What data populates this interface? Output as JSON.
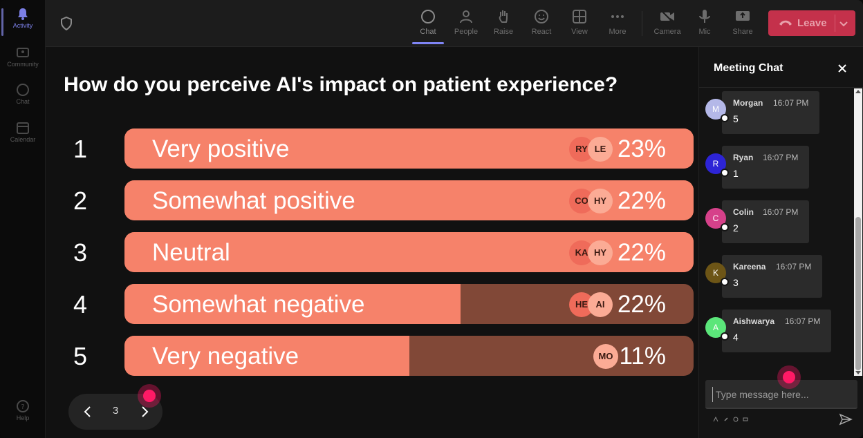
{
  "rail": {
    "items": [
      {
        "label": "Activity",
        "icon": "bell-icon",
        "active": true
      },
      {
        "label": "Community",
        "icon": "community-icon",
        "active": false
      },
      {
        "label": "Chat",
        "icon": "chat-icon",
        "active": false
      },
      {
        "label": "Calendar",
        "icon": "calendar-icon",
        "active": false
      }
    ],
    "help": "Help"
  },
  "toolbar": {
    "chat": "Chat",
    "people": "People",
    "raise": "Raise",
    "react": "React",
    "view": "View",
    "more": "More",
    "camera": "Camera",
    "mic": "Mic",
    "share": "Share",
    "leave": "Leave"
  },
  "poll": {
    "question": "How do you perceive AI's impact on patient experience?",
    "options": [
      {
        "num": "1",
        "label": "Very positive",
        "percent": "23%",
        "fill": 1.0,
        "avatars": [
          "RY",
          "LE"
        ]
      },
      {
        "num": "2",
        "label": "Somewhat positive",
        "percent": "22%",
        "fill": 1.0,
        "avatars": [
          "CO",
          "HY"
        ]
      },
      {
        "num": "3",
        "label": "Neutral",
        "percent": "22%",
        "fill": 1.0,
        "avatars": [
          "KA",
          "HY"
        ]
      },
      {
        "num": "4",
        "label": "Somewhat negative",
        "percent": "22%",
        "fill": 0.59,
        "avatars": [
          "HE",
          "AI"
        ]
      },
      {
        "num": "5",
        "label": "Very negative",
        "percent": "11%",
        "fill": 0.5,
        "avatars": [
          "MO"
        ]
      }
    ],
    "page": "3"
  },
  "chat": {
    "title": "Meeting Chat",
    "messages": [
      {
        "initial": "M",
        "name": "Morgan",
        "time": "16:07 PM",
        "text": "5",
        "color": "#b4b8e8"
      },
      {
        "initial": "R",
        "name": "Ryan",
        "time": "16:07 PM",
        "text": "1",
        "color": "#2d24d6"
      },
      {
        "initial": "C",
        "name": "Colin",
        "time": "16:07 PM",
        "text": "2",
        "color": "#d6418a"
      },
      {
        "initial": "K",
        "name": "Kareena",
        "time": "16:07 PM",
        "text": "3",
        "color": "#6d5516"
      },
      {
        "initial": "A",
        "name": "Aishwarya",
        "time": "16:07 PM",
        "text": "4",
        "color": "#5be67a"
      }
    ],
    "compose_placeholder": "Type message here..."
  },
  "colors": {
    "bar_fill": "#f6826a",
    "bar_track": "#814837",
    "leave": "#c4314b",
    "accent": "#7f85f5"
  }
}
